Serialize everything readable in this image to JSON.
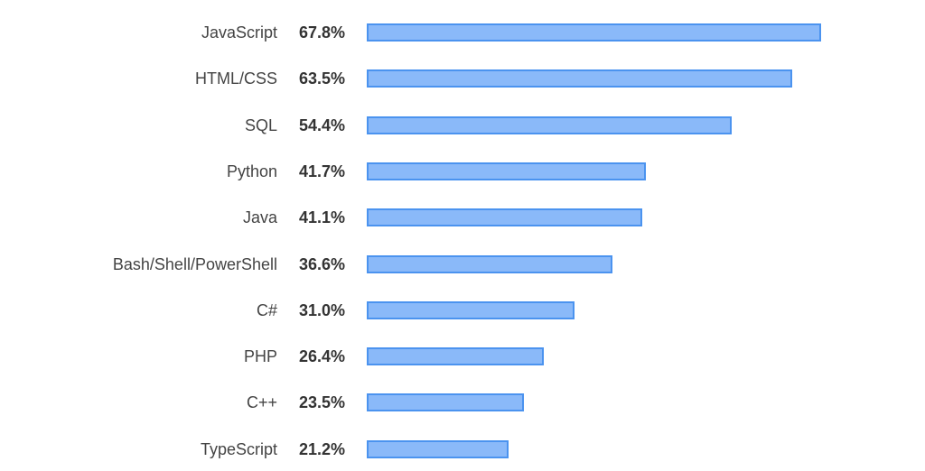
{
  "chart_data": {
    "type": "bar",
    "orientation": "horizontal",
    "title": "",
    "xlabel": "",
    "ylabel": "",
    "categories": [
      "JavaScript",
      "HTML/CSS",
      "SQL",
      "Python",
      "Java",
      "Bash/Shell/PowerShell",
      "C#",
      "PHP",
      "C++",
      "TypeScript"
    ],
    "values": [
      67.8,
      63.5,
      54.4,
      41.7,
      41.1,
      36.6,
      31.0,
      26.4,
      23.5,
      21.2
    ],
    "value_labels": [
      "67.8%",
      "63.5%",
      "54.4%",
      "41.7%",
      "41.1%",
      "36.6%",
      "31.0%",
      "26.4%",
      "23.5%",
      "21.2%"
    ],
    "unit": "%",
    "grid": false,
    "legend": null,
    "colors": {
      "bar_fill": "#8ab9f9",
      "bar_border": "#4b93ef"
    }
  }
}
